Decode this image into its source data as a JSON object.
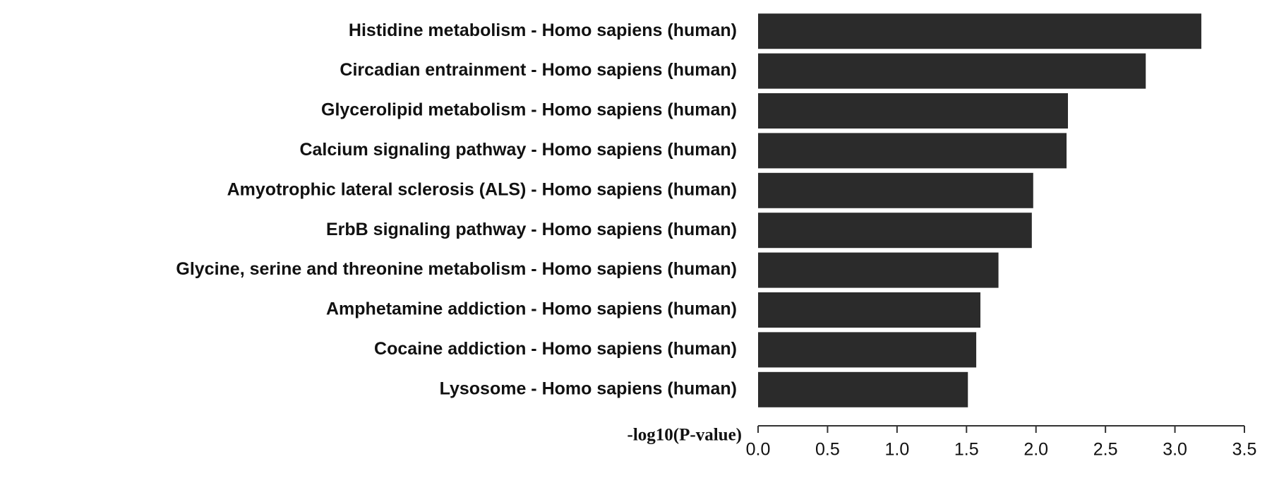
{
  "chart_data": {
    "type": "bar",
    "orientation": "horizontal",
    "x_label": "-log10(P-value)",
    "categories": [
      "Histidine metabolism - Homo sapiens (human)",
      "Circadian entrainment - Homo sapiens (human)",
      "Glycerolipid metabolism - Homo sapiens (human)",
      "Calcium signaling pathway - Homo sapiens (human)",
      "Amyotrophic lateral sclerosis (ALS) - Homo sapiens (human)",
      "ErbB signaling pathway - Homo sapiens (human)",
      "Glycine, serine and threonine metabolism - Homo sapiens (human)",
      "Amphetamine addiction - Homo sapiens (human)",
      "Cocaine addiction - Homo sapiens (human)",
      "Lysosome - Homo sapiens (human)"
    ],
    "values": [
      3.19,
      2.79,
      2.23,
      2.22,
      1.98,
      1.97,
      1.73,
      1.6,
      1.57,
      1.51
    ],
    "color": "#2b2b2b",
    "xlim": [
      0,
      3.5
    ],
    "xticks": [
      {
        "value": 0,
        "label": "0.0"
      },
      0.5,
      {
        "value": 1,
        "label": "1.0"
      },
      1.5,
      {
        "value": 2,
        "label": "2.0"
      },
      2.5,
      {
        "value": 3,
        "label": "3.0"
      },
      3.5
    ],
    "grid": false
  }
}
